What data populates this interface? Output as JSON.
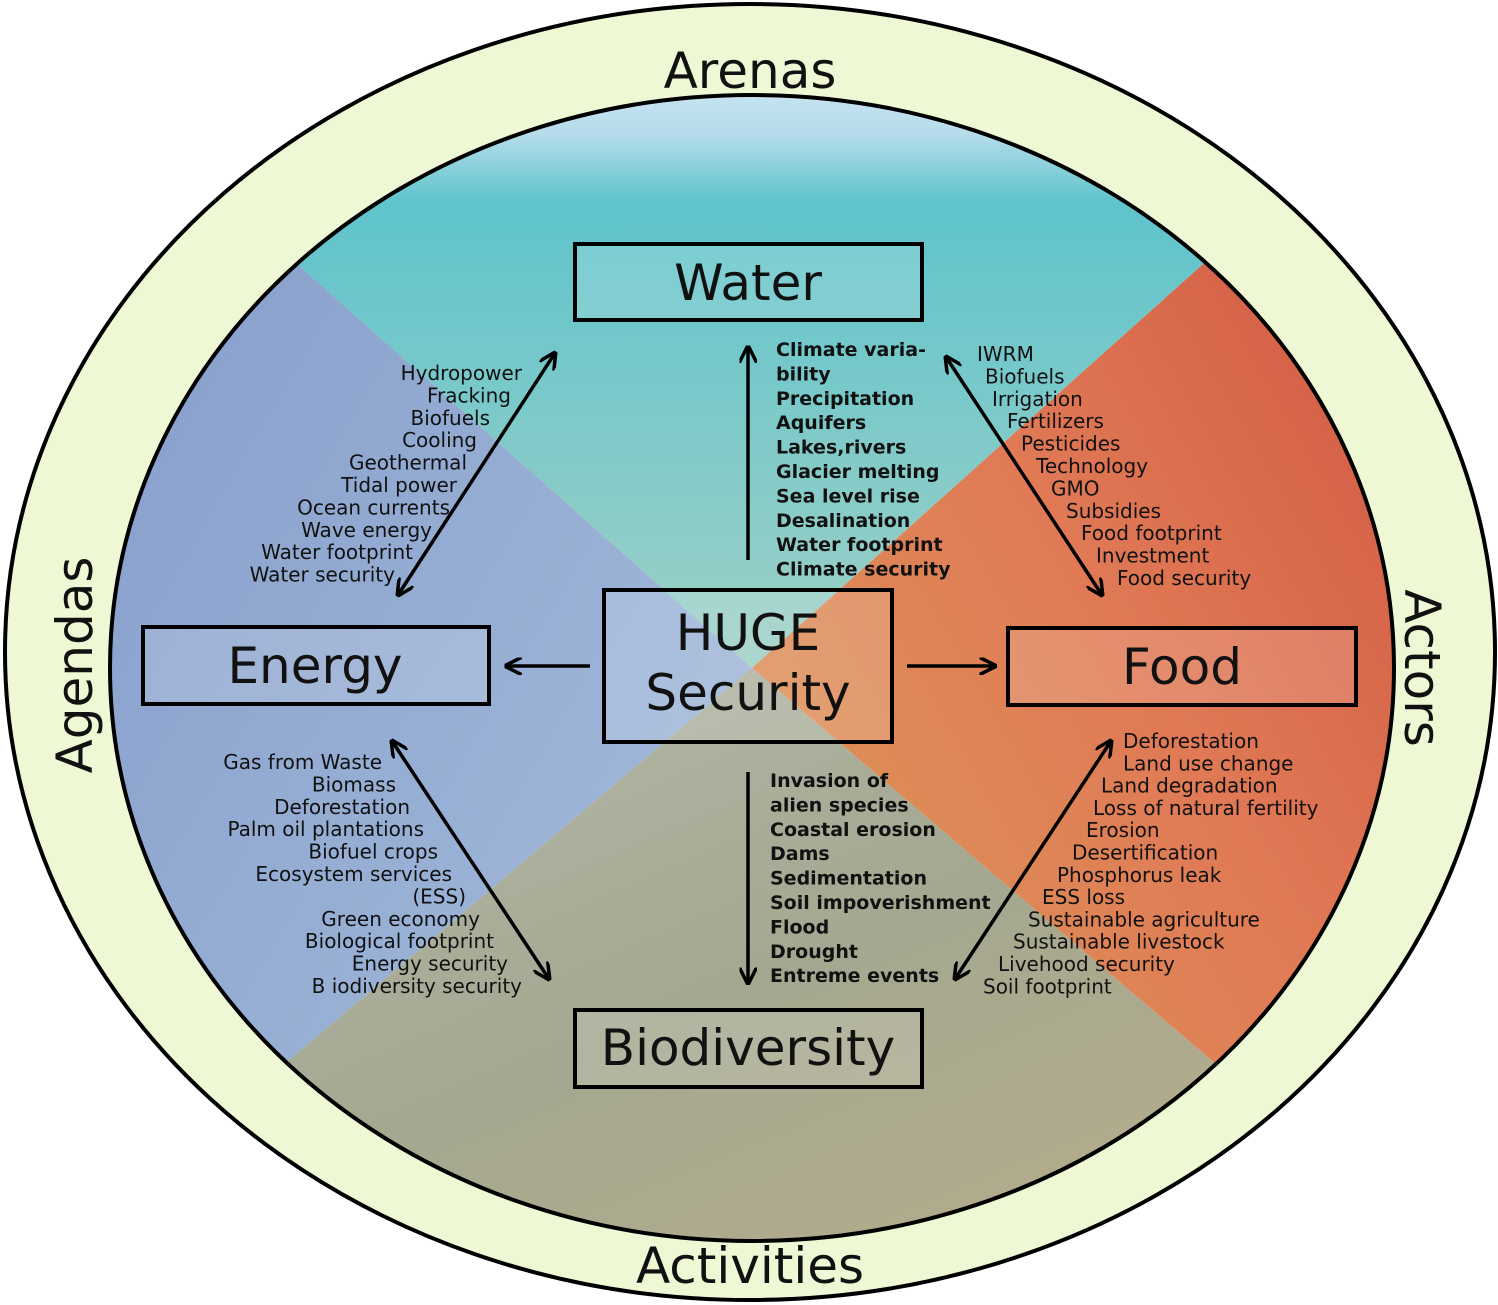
{
  "ring_labels": {
    "top": "Arenas",
    "bottom": "Activities",
    "left": "Agendas",
    "right": "Actors"
  },
  "nodes": {
    "water": "Water",
    "energy": "Energy",
    "food": "Food",
    "biodiversity": "Biodiversity",
    "center": [
      "HUGE",
      "Security"
    ]
  },
  "lists": {
    "energy_water": [
      "Hydropower",
      "Fracking",
      "Biofuels",
      "Cooling",
      "Geothermal",
      "Tidal power",
      "Ocean currents",
      "Wave energy",
      "Water footprint",
      "Water security"
    ],
    "water": [
      "Climate varia-",
      "bility",
      "Precipitation",
      "Aquifers",
      "Lakes,rivers",
      "Glacier melting",
      "Sea level rise",
      "Desalination",
      "Water footprint",
      "Climate security"
    ],
    "water_food": [
      "IWRM",
      "Biofuels",
      "Irrigation",
      "Fertilizers",
      "Pesticides",
      "Technology",
      "GMO",
      "Subsidies",
      "Food footprint",
      "Investment",
      "Food security"
    ],
    "energy_biodiversity": [
      "Gas from Waste",
      "Biomass",
      "Deforestation",
      "Palm oil plantations",
      "Biofuel crops",
      "Ecosystem services",
      "(ESS)",
      "Green economy",
      "Biological footprint",
      "Energy security",
      "B iodiversity security"
    ],
    "biodiversity": [
      "Invasion of",
      "alien species",
      "Coastal erosion",
      "Dams",
      "Sedimentation",
      "Soil impoverishment",
      "Flood",
      "Drought",
      "Entreme events"
    ],
    "food_biodiversity": [
      "Deforestation",
      "Land use change",
      "Land degradation",
      "Loss of natural fertility",
      "Erosion",
      "Desertification",
      "Phosphorus leak",
      "ESS loss",
      "Sustainable agriculture",
      "Sustainable livestock",
      "Livehood security",
      "Soil footprint"
    ]
  }
}
